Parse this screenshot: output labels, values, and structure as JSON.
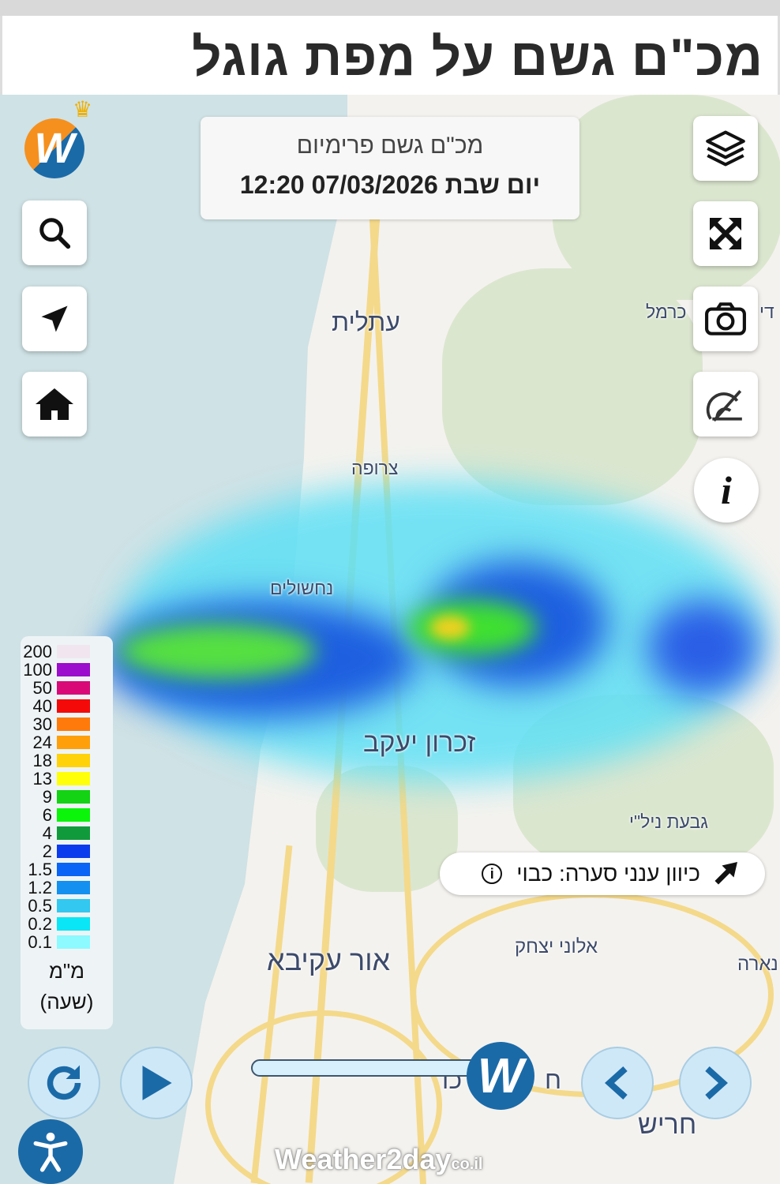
{
  "header": {
    "title": "מכ\"ם גשם על מפת גוגל"
  },
  "info": {
    "title": "מכ\"ם גשם פרימיום",
    "datetime": "יום שבת 07/03/2026 12:20"
  },
  "map_labels": {
    "atlit": "עתלית",
    "tsrufa": "צרופה",
    "nahsholim": "נחשולים",
    "zichron": "זכרון יעקב",
    "givat_nili": "גבעת ניל\"י",
    "aloney": "אלוני יצחק",
    "or_akiva": "אור עקיבא",
    "harish": "חריש",
    "carmel": "כרמל",
    "di": "די",
    "nara": "נארה",
    "h_partial": "ח",
    "kh_partial": "כו"
  },
  "legend": {
    "items": [
      {
        "label": "200",
        "color": "#f1e6ef"
      },
      {
        "label": "100",
        "color": "#9c0ccc"
      },
      {
        "label": "50",
        "color": "#d90a78"
      },
      {
        "label": "40",
        "color": "#f50a0a"
      },
      {
        "label": "30",
        "color": "#ff7a0a"
      },
      {
        "label": "24",
        "color": "#ffa00a"
      },
      {
        "label": "18",
        "color": "#ffd20a"
      },
      {
        "label": "13",
        "color": "#ffff0a"
      },
      {
        "label": "9",
        "color": "#14d214"
      },
      {
        "label": "6",
        "color": "#0af50a"
      },
      {
        "label": "4",
        "color": "#119a3c"
      },
      {
        "label": "2",
        "color": "#0a3ced"
      },
      {
        "label": "1.5",
        "color": "#0a64f5"
      },
      {
        "label": "1.2",
        "color": "#1490f0"
      },
      {
        "label": "0.5",
        "color": "#32c8f0"
      },
      {
        "label": "0.2",
        "color": "#0ae6f5"
      },
      {
        "label": "0.1",
        "color": "#8cfaff"
      }
    ],
    "unit": "מ\"מ",
    "period": "(שעה)"
  },
  "storm_direction": {
    "label": "כיוון ענני סערה: כבוי",
    "icon": "arrow-up-right-icon"
  },
  "slider": {
    "position": 0.95
  },
  "brand": {
    "name": "Weather2day",
    "suffix": "co.il"
  },
  "colors": {
    "button_blue": "#1b6aa8",
    "sea": "#cfe2e5"
  }
}
